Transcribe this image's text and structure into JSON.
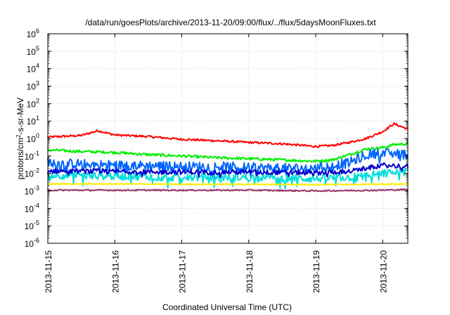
{
  "chart_data": {
    "type": "line",
    "title": "/data/run/goesPlots/archive/2013-11-20/09:00/flux/../flux/5daysMoonFluxes.txt",
    "xlabel": "Coordinated Universal Time (UTC)",
    "ylabel": "protons/cm²-s-sr-MeV",
    "y_scale": "log",
    "x_range": [
      "2013-11-15T00:00",
      "2013-11-20T09:00"
    ],
    "ylim": [
      1e-06,
      1000000.0
    ],
    "grid": true,
    "legend": "none",
    "x_ticks": [
      "2013-11-15",
      "2013-11-16",
      "2013-11-17",
      "2013-11-18",
      "2013-11-19",
      "2013-11-20"
    ],
    "y_ticks": [
      {
        "base": "10",
        "exp": "-6",
        "value": 1e-06
      },
      {
        "base": "10",
        "exp": "-5",
        "value": 1e-05
      },
      {
        "base": "10",
        "exp": "-4",
        "value": 0.0001
      },
      {
        "base": "10",
        "exp": "-3",
        "value": 0.001
      },
      {
        "base": "10",
        "exp": "-2",
        "value": 0.01
      },
      {
        "base": "10",
        "exp": "-1",
        "value": 0.1
      },
      {
        "base": "10",
        "exp": "0",
        "value": 1
      },
      {
        "base": "10",
        "exp": "1",
        "value": 10
      },
      {
        "base": "10",
        "exp": "2",
        "value": 100
      },
      {
        "base": "10",
        "exp": "3",
        "value": 1000
      },
      {
        "base": "10",
        "exp": "4",
        "value": 10000
      },
      {
        "base": "10",
        "exp": "5",
        "value": 100000
      },
      {
        "base": "10",
        "exp": "6",
        "value": 1000000
      }
    ],
    "series": [
      {
        "color": "#ff0000",
        "x": [
          "2013-11-15T00:00",
          "2013-11-15T12:00",
          "2013-11-15T18:00",
          "2013-11-16T00:00",
          "2013-11-16T12:00",
          "2013-11-17T00:00",
          "2013-11-17T12:00",
          "2013-11-18T00:00",
          "2013-11-18T12:00",
          "2013-11-19T00:00",
          "2013-11-19T06:00",
          "2013-11-19T12:00",
          "2013-11-19T18:00",
          "2013-11-20T00:00",
          "2013-11-20T04:00",
          "2013-11-20T09:00"
        ],
        "values": [
          1.2,
          1.5,
          2.8,
          1.6,
          1.3,
          0.9,
          0.75,
          0.6,
          0.5,
          0.35,
          0.4,
          0.6,
          1.0,
          2.5,
          7.0,
          3.5
        ]
      },
      {
        "color": "#00ee00",
        "x": [
          "2013-11-15T00:00",
          "2013-11-15T12:00",
          "2013-11-16T00:00",
          "2013-11-16T12:00",
          "2013-11-17T00:00",
          "2013-11-17T12:00",
          "2013-11-18T00:00",
          "2013-11-18T12:00",
          "2013-11-19T00:00",
          "2013-11-19T06:00",
          "2013-11-19T12:00",
          "2013-11-19T18:00",
          "2013-11-20T00:00",
          "2013-11-20T04:00",
          "2013-11-20T09:00"
        ],
        "values": [
          0.22,
          0.18,
          0.16,
          0.12,
          0.1,
          0.08,
          0.07,
          0.06,
          0.05,
          0.06,
          0.12,
          0.25,
          0.3,
          0.45,
          0.5
        ]
      },
      {
        "color": "#0066ff",
        "x": [
          "2013-11-15T00:00",
          "2013-11-15T12:00",
          "2013-11-16T00:00",
          "2013-11-16T12:00",
          "2013-11-17T00:00",
          "2013-11-17T12:00",
          "2013-11-18T00:00",
          "2013-11-18T12:00",
          "2013-11-19T00:00",
          "2013-11-19T12:00",
          "2013-11-19T18:00",
          "2013-11-20T00:00",
          "2013-11-20T09:00"
        ],
        "values": [
          0.04,
          0.035,
          0.03,
          0.028,
          0.025,
          0.025,
          0.022,
          0.02,
          0.02,
          0.04,
          0.12,
          0.15,
          0.12
        ]
      },
      {
        "color": "#00dddd",
        "x": [
          "2013-11-15T00:00",
          "2013-11-16T00:00",
          "2013-11-17T00:00",
          "2013-11-18T00:00",
          "2013-11-19T00:00",
          "2013-11-19T12:00",
          "2013-11-20T00:00",
          "2013-11-20T09:00"
        ],
        "values": [
          0.008,
          0.007,
          0.006,
          0.006,
          0.005,
          0.006,
          0.01,
          0.012
        ]
      },
      {
        "color": "#0000cc",
        "x": [
          "2013-11-15T00:00",
          "2013-11-16T00:00",
          "2013-11-17T00:00",
          "2013-11-18T00:00",
          "2013-11-19T00:00",
          "2013-11-19T12:00",
          "2013-11-20T00:00",
          "2013-11-20T09:00"
        ],
        "values": [
          0.014,
          0.013,
          0.012,
          0.012,
          0.011,
          0.013,
          0.03,
          0.025
        ]
      },
      {
        "color": "#ffee00",
        "x": [
          "2013-11-15T00:00",
          "2013-11-16T00:00",
          "2013-11-17T00:00",
          "2013-11-18T00:00",
          "2013-11-19T00:00",
          "2013-11-20T00:00",
          "2013-11-20T09:00"
        ],
        "values": [
          0.0025,
          0.0025,
          0.0024,
          0.0024,
          0.0023,
          0.0024,
          0.0025
        ]
      },
      {
        "color": "#993366",
        "x": [
          "2013-11-15T00:00",
          "2013-11-16T00:00",
          "2013-11-17T00:00",
          "2013-11-18T00:00",
          "2013-11-19T00:00",
          "2013-11-20T00:00",
          "2013-11-20T09:00"
        ],
        "values": [
          0.0011,
          0.0011,
          0.0011,
          0.0011,
          0.001,
          0.0011,
          0.0012
        ]
      }
    ]
  }
}
